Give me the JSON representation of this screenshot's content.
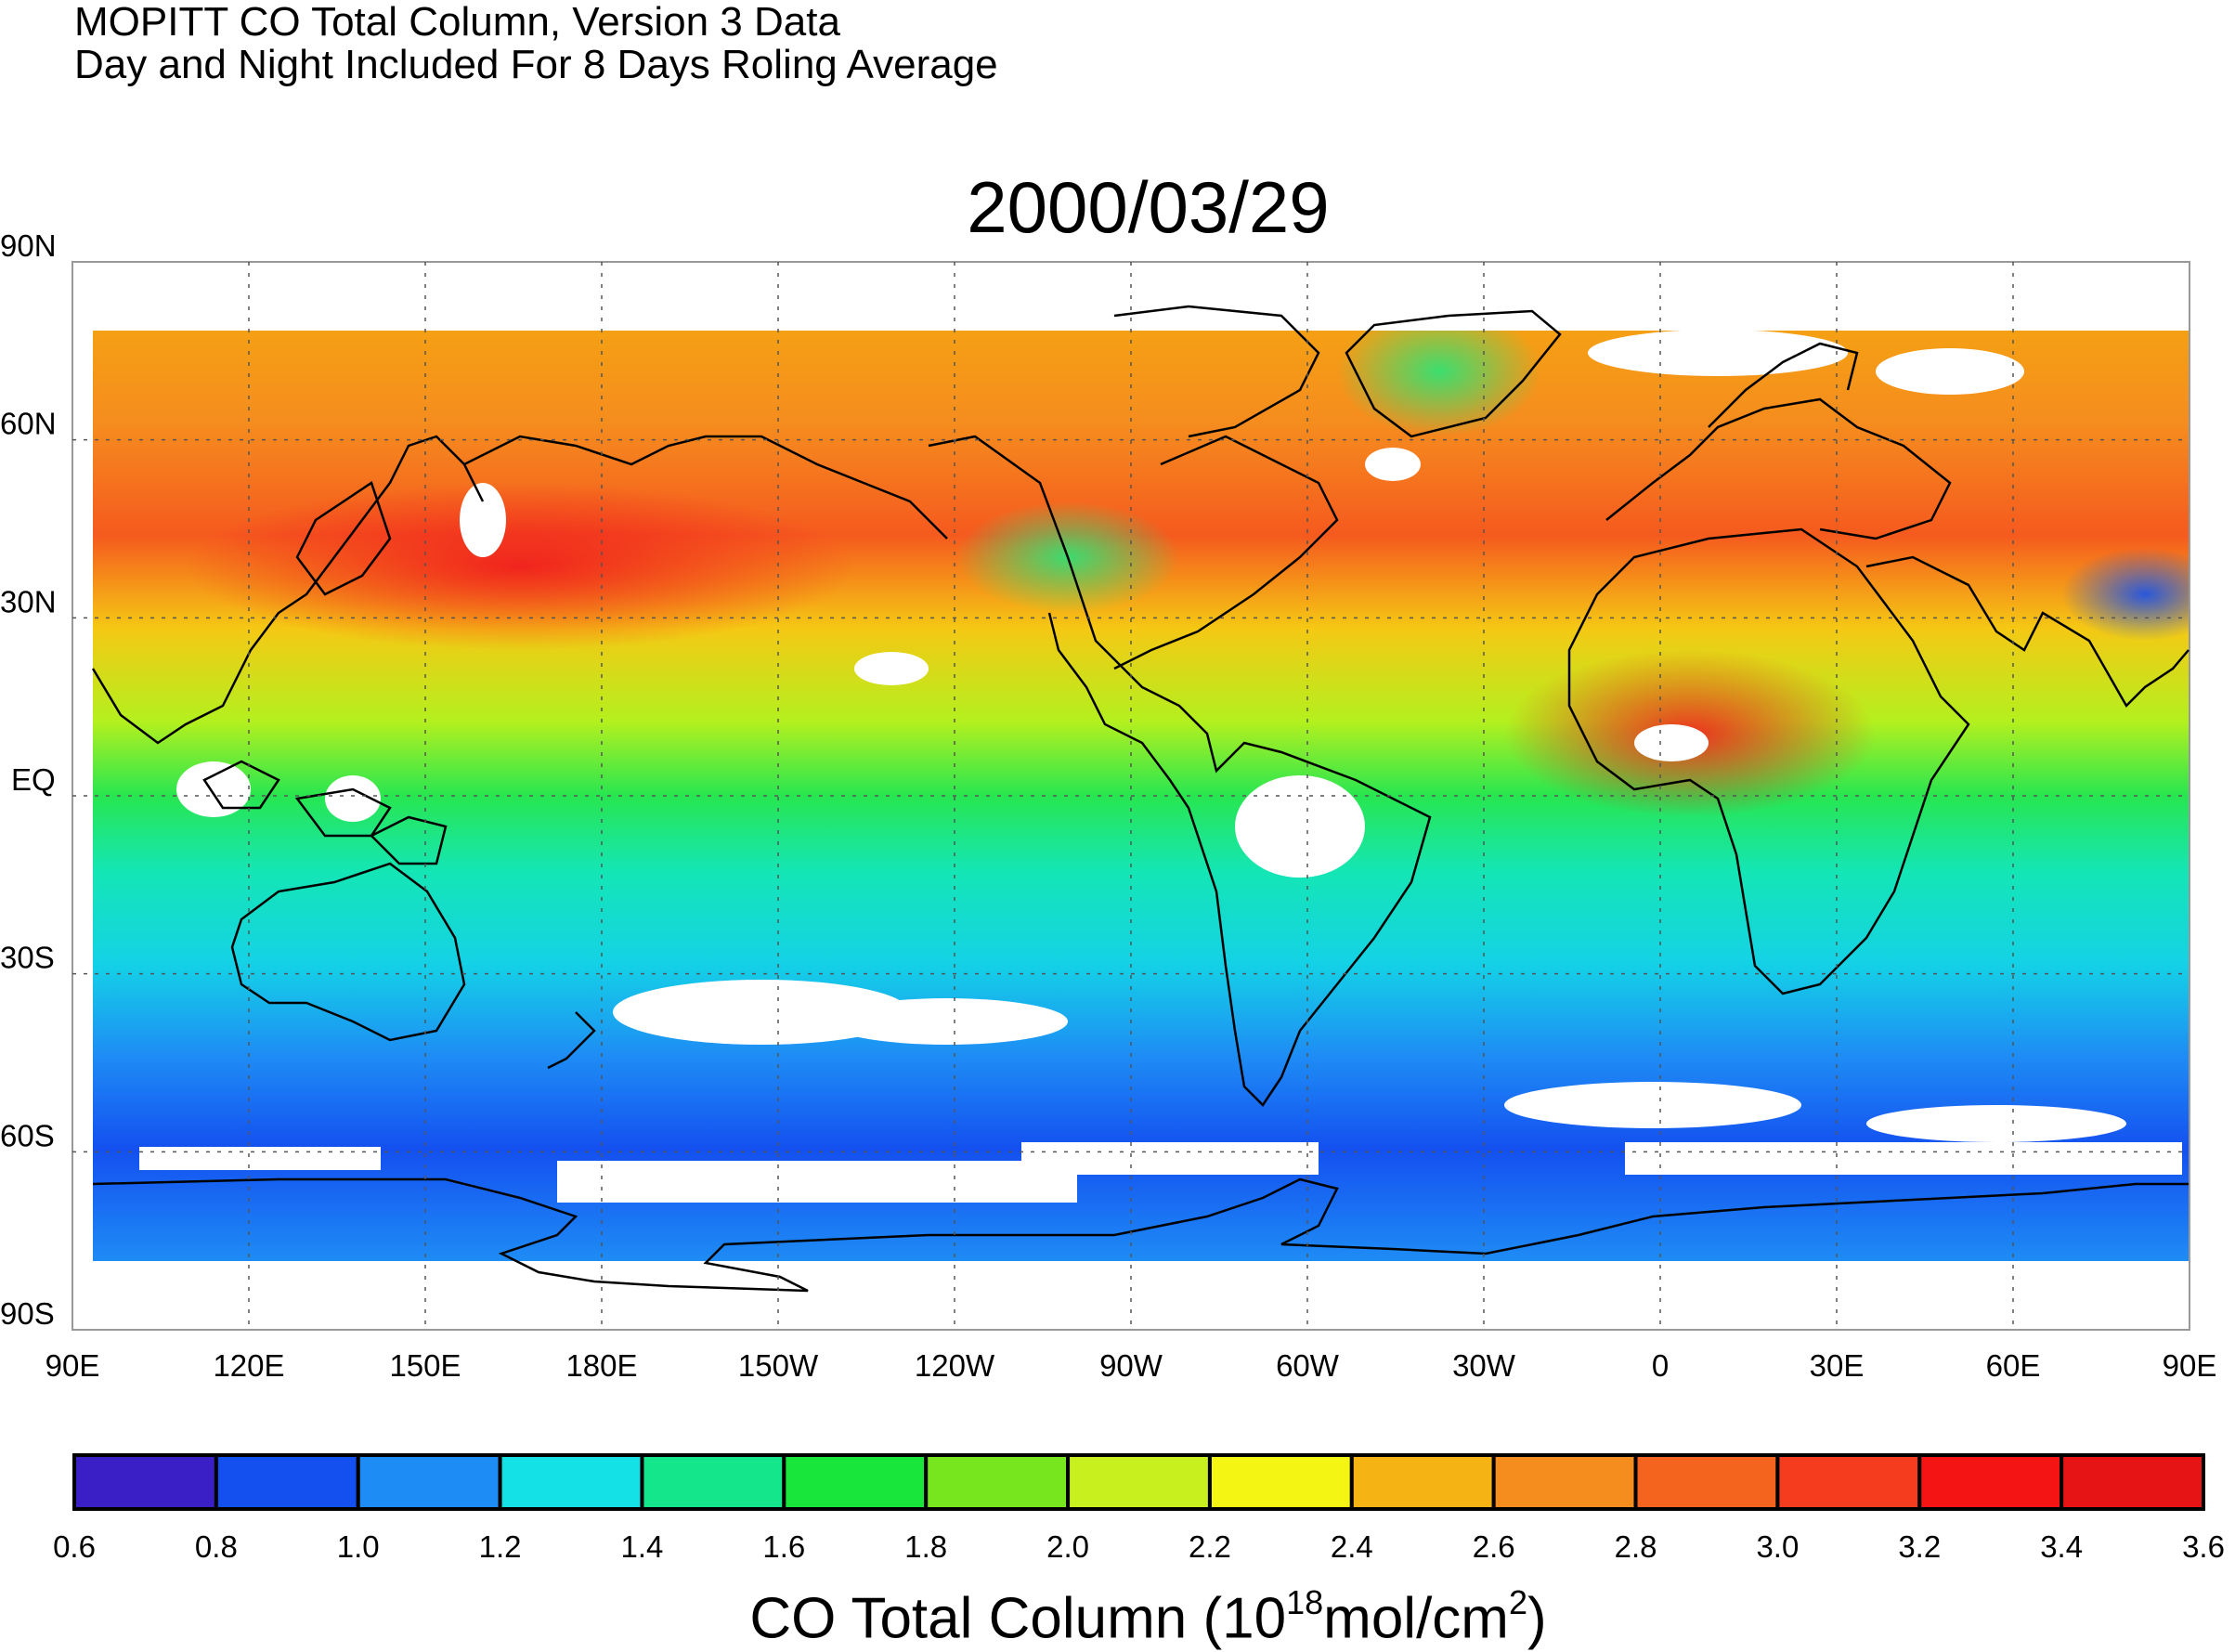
{
  "header": {
    "line1": "MOPITT CO Total Column, Version 3 Data",
    "line2": "Day and Night Included For 8 Days Roling Average"
  },
  "map": {
    "date": "2000/03/29",
    "lat_labels": [
      "90N",
      "60N",
      "30N",
      "EQ",
      "30S",
      "60S",
      "90S"
    ],
    "lon_labels": [
      "90E",
      "120E",
      "150E",
      "180E",
      "150W",
      "120W",
      "90W",
      "60W",
      "30W",
      "0",
      "30E",
      "60E",
      "90E"
    ],
    "gridlines": "dotted",
    "field": "MOPITT CO total column",
    "fill_color_for_missing": "#ffffff",
    "coastlines": "black"
  },
  "colorbar": {
    "title_prefix": "CO Total Column (10",
    "title_exp1": "18",
    "title_mid": "mol/cm",
    "title_exp2": "2",
    "title_suffix": ")",
    "ticks": [
      "0.6",
      "0.8",
      "1.0",
      "1.2",
      "1.4",
      "1.6",
      "1.8",
      "2.0",
      "2.2",
      "2.4",
      "2.6",
      "2.8",
      "3.0",
      "3.2",
      "3.4",
      "3.6"
    ],
    "colors": [
      "#3a1fc6",
      "#1450f0",
      "#1e8cf5",
      "#14e1e6",
      "#14e68c",
      "#18e63a",
      "#78e61e",
      "#c8f01e",
      "#f5f514",
      "#f5b414",
      "#f58c1e",
      "#f5641e",
      "#f53c1e",
      "#f51414",
      "#e61414"
    ]
  }
}
